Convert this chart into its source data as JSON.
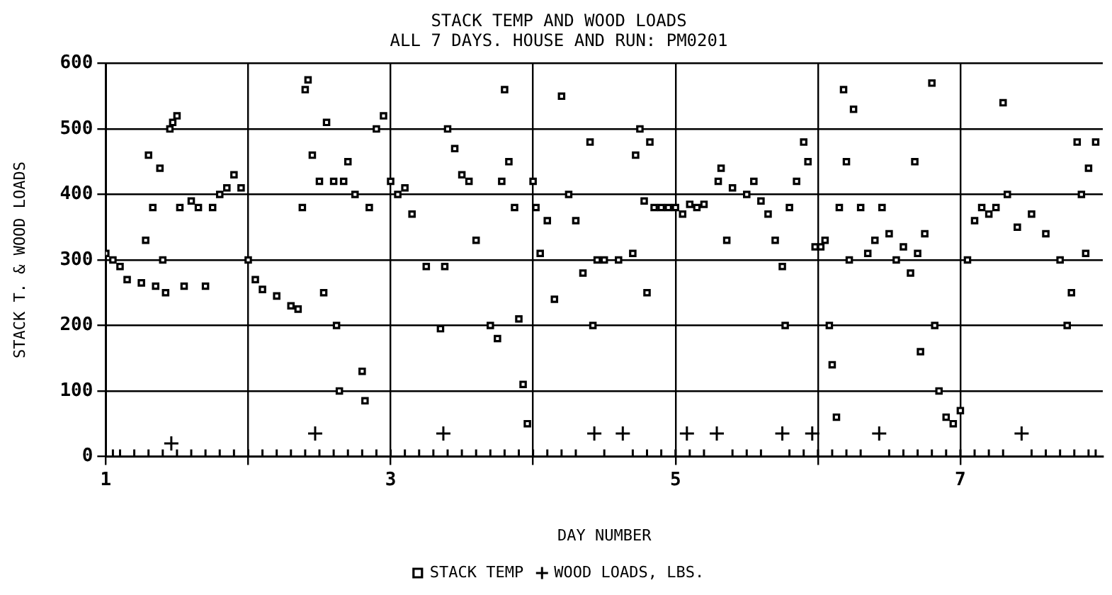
{
  "chart_data": {
    "type": "scatter",
    "title": "STACK TEMP AND WOOD LOADS",
    "subtitle": "ALL 7 DAYS. HOUSE AND RUN: PM0201",
    "xlabel": "DAY NUMBER",
    "ylabel": "STACK T. & WOOD LOADS",
    "xlim": [
      1,
      8
    ],
    "xticks": [
      1,
      {
        "value": 2,
        "label": null
      },
      3,
      {
        "value": 4,
        "label": null
      },
      5,
      {
        "value": 6,
        "label": null
      },
      7
    ],
    "ylim": [
      0,
      600
    ],
    "yticks": [
      0,
      100,
      200,
      300,
      400,
      500,
      600
    ],
    "grid": true,
    "legend": "bottom",
    "series": [
      {
        "name": "STACK TEMP",
        "color": "#000000",
        "marker": "square",
        "x": [
          1.0,
          1.05,
          1.1,
          1.15,
          1.25,
          1.28,
          1.3,
          1.33,
          1.35,
          1.38,
          1.4,
          1.42,
          1.45,
          1.47,
          1.5,
          1.52,
          1.55,
          1.6,
          1.65,
          1.7,
          1.75,
          1.8,
          1.85,
          1.9,
          1.95,
          2.0,
          2.05,
          2.1,
          2.2,
          2.3,
          2.35,
          2.38,
          2.4,
          2.42,
          2.45,
          2.5,
          2.53,
          2.55,
          2.6,
          2.62,
          2.64,
          2.67,
          2.7,
          2.75,
          2.8,
          2.82,
          2.85,
          2.9,
          2.95,
          3.0,
          3.05,
          3.1,
          3.15,
          3.25,
          3.35,
          3.38,
          3.4,
          3.45,
          3.5,
          3.55,
          3.6,
          3.7,
          3.75,
          3.78,
          3.8,
          3.83,
          3.87,
          3.9,
          3.93,
          3.96,
          4.0,
          4.02,
          4.05,
          4.1,
          4.15,
          4.2,
          4.25,
          4.3,
          4.35,
          4.4,
          4.42,
          4.45,
          4.5,
          4.6,
          4.7,
          4.72,
          4.75,
          4.78,
          4.8,
          4.82,
          4.85,
          4.9,
          4.95,
          5.0,
          5.05,
          5.1,
          5.15,
          5.2,
          5.3,
          5.32,
          5.36,
          5.4,
          5.5,
          5.55,
          5.6,
          5.65,
          5.7,
          5.75,
          5.77,
          5.8,
          5.85,
          5.9,
          5.93,
          5.98,
          6.02,
          6.05,
          6.08,
          6.1,
          6.13,
          6.15,
          6.18,
          6.2,
          6.22,
          6.25,
          6.3,
          6.35,
          6.4,
          6.45,
          6.5,
          6.55,
          6.6,
          6.65,
          6.68,
          6.7,
          6.72,
          6.75,
          6.8,
          6.82,
          6.85,
          6.9,
          6.95,
          7.0,
          7.05,
          7.1,
          7.15,
          7.2,
          7.25,
          7.3,
          7.33,
          7.4,
          7.5,
          7.6,
          7.7,
          7.75,
          7.78,
          7.82,
          7.85,
          7.88,
          7.9,
          7.95
        ],
        "values": [
          310,
          300,
          290,
          270,
          265,
          330,
          460,
          380,
          260,
          440,
          300,
          250,
          500,
          510,
          520,
          380,
          260,
          390,
          380,
          260,
          380,
          400,
          410,
          430,
          410,
          300,
          270,
          255,
          245,
          230,
          225,
          380,
          560,
          575,
          460,
          420,
          250,
          510,
          420,
          200,
          100,
          420,
          450,
          400,
          130,
          85,
          380,
          500,
          520,
          420,
          400,
          410,
          370,
          290,
          195,
          290,
          500,
          470,
          430,
          420,
          330,
          200,
          180,
          420,
          560,
          450,
          380,
          210,
          110,
          50,
          420,
          380,
          310,
          360,
          240,
          550,
          400,
          360,
          280,
          480,
          200,
          300,
          300,
          300,
          310,
          460,
          500,
          390,
          250,
          480,
          380,
          380,
          380,
          380,
          370,
          385,
          380,
          385,
          420,
          440,
          330,
          410,
          400,
          420,
          390,
          370,
          330,
          290,
          200,
          380,
          420,
          480,
          450,
          320,
          320,
          330,
          200,
          140,
          60,
          380,
          560,
          450,
          300,
          530,
          380,
          310,
          330,
          380,
          340,
          300,
          320,
          280,
          450,
          310,
          160,
          340,
          570,
          200,
          100,
          60,
          50,
          70,
          300,
          360,
          380,
          370,
          380,
          540,
          400,
          350,
          370,
          340,
          300,
          200,
          250,
          480,
          400,
          310,
          440,
          480
        ]
      },
      {
        "name": "WOOD LOADS, LBS.",
        "color": "#000000",
        "marker": "cross",
        "x": [
          1.05,
          1.1,
          1.2,
          1.3,
          1.4,
          1.46,
          1.5,
          1.6,
          1.7,
          1.8,
          1.9,
          2.0,
          2.1,
          2.2,
          2.3,
          2.4,
          2.47,
          2.5,
          2.6,
          2.7,
          2.8,
          2.9,
          3.0,
          3.1,
          3.2,
          3.3,
          3.37,
          3.4,
          3.5,
          3.6,
          3.7,
          3.8,
          3.9,
          4.0,
          4.1,
          4.2,
          4.3,
          4.43,
          4.5,
          4.63,
          4.7,
          4.8,
          4.9,
          5.0,
          5.08,
          5.1,
          5.2,
          5.29,
          5.4,
          5.5,
          5.6,
          5.75,
          5.8,
          5.9,
          5.96,
          6.0,
          6.1,
          6.2,
          6.3,
          6.43,
          6.5,
          6.6,
          6.7,
          6.8,
          6.9,
          7.0,
          7.1,
          7.2,
          7.3,
          7.43,
          7.5,
          7.6,
          7.7,
          7.8,
          7.9,
          7.95
        ],
        "values": [
          0,
          0,
          0,
          0,
          0,
          20,
          0,
          0,
          0,
          0,
          0,
          0,
          0,
          0,
          0,
          0,
          35,
          0,
          0,
          0,
          0,
          0,
          0,
          0,
          0,
          0,
          35,
          0,
          0,
          0,
          0,
          0,
          0,
          0,
          0,
          0,
          0,
          35,
          0,
          35,
          0,
          0,
          0,
          0,
          35,
          0,
          0,
          35,
          0,
          0,
          0,
          35,
          0,
          0,
          35,
          0,
          0,
          0,
          0,
          35,
          0,
          0,
          0,
          0,
          0,
          0,
          0,
          0,
          0,
          35,
          0,
          0,
          0,
          0,
          0,
          0
        ]
      }
    ]
  }
}
